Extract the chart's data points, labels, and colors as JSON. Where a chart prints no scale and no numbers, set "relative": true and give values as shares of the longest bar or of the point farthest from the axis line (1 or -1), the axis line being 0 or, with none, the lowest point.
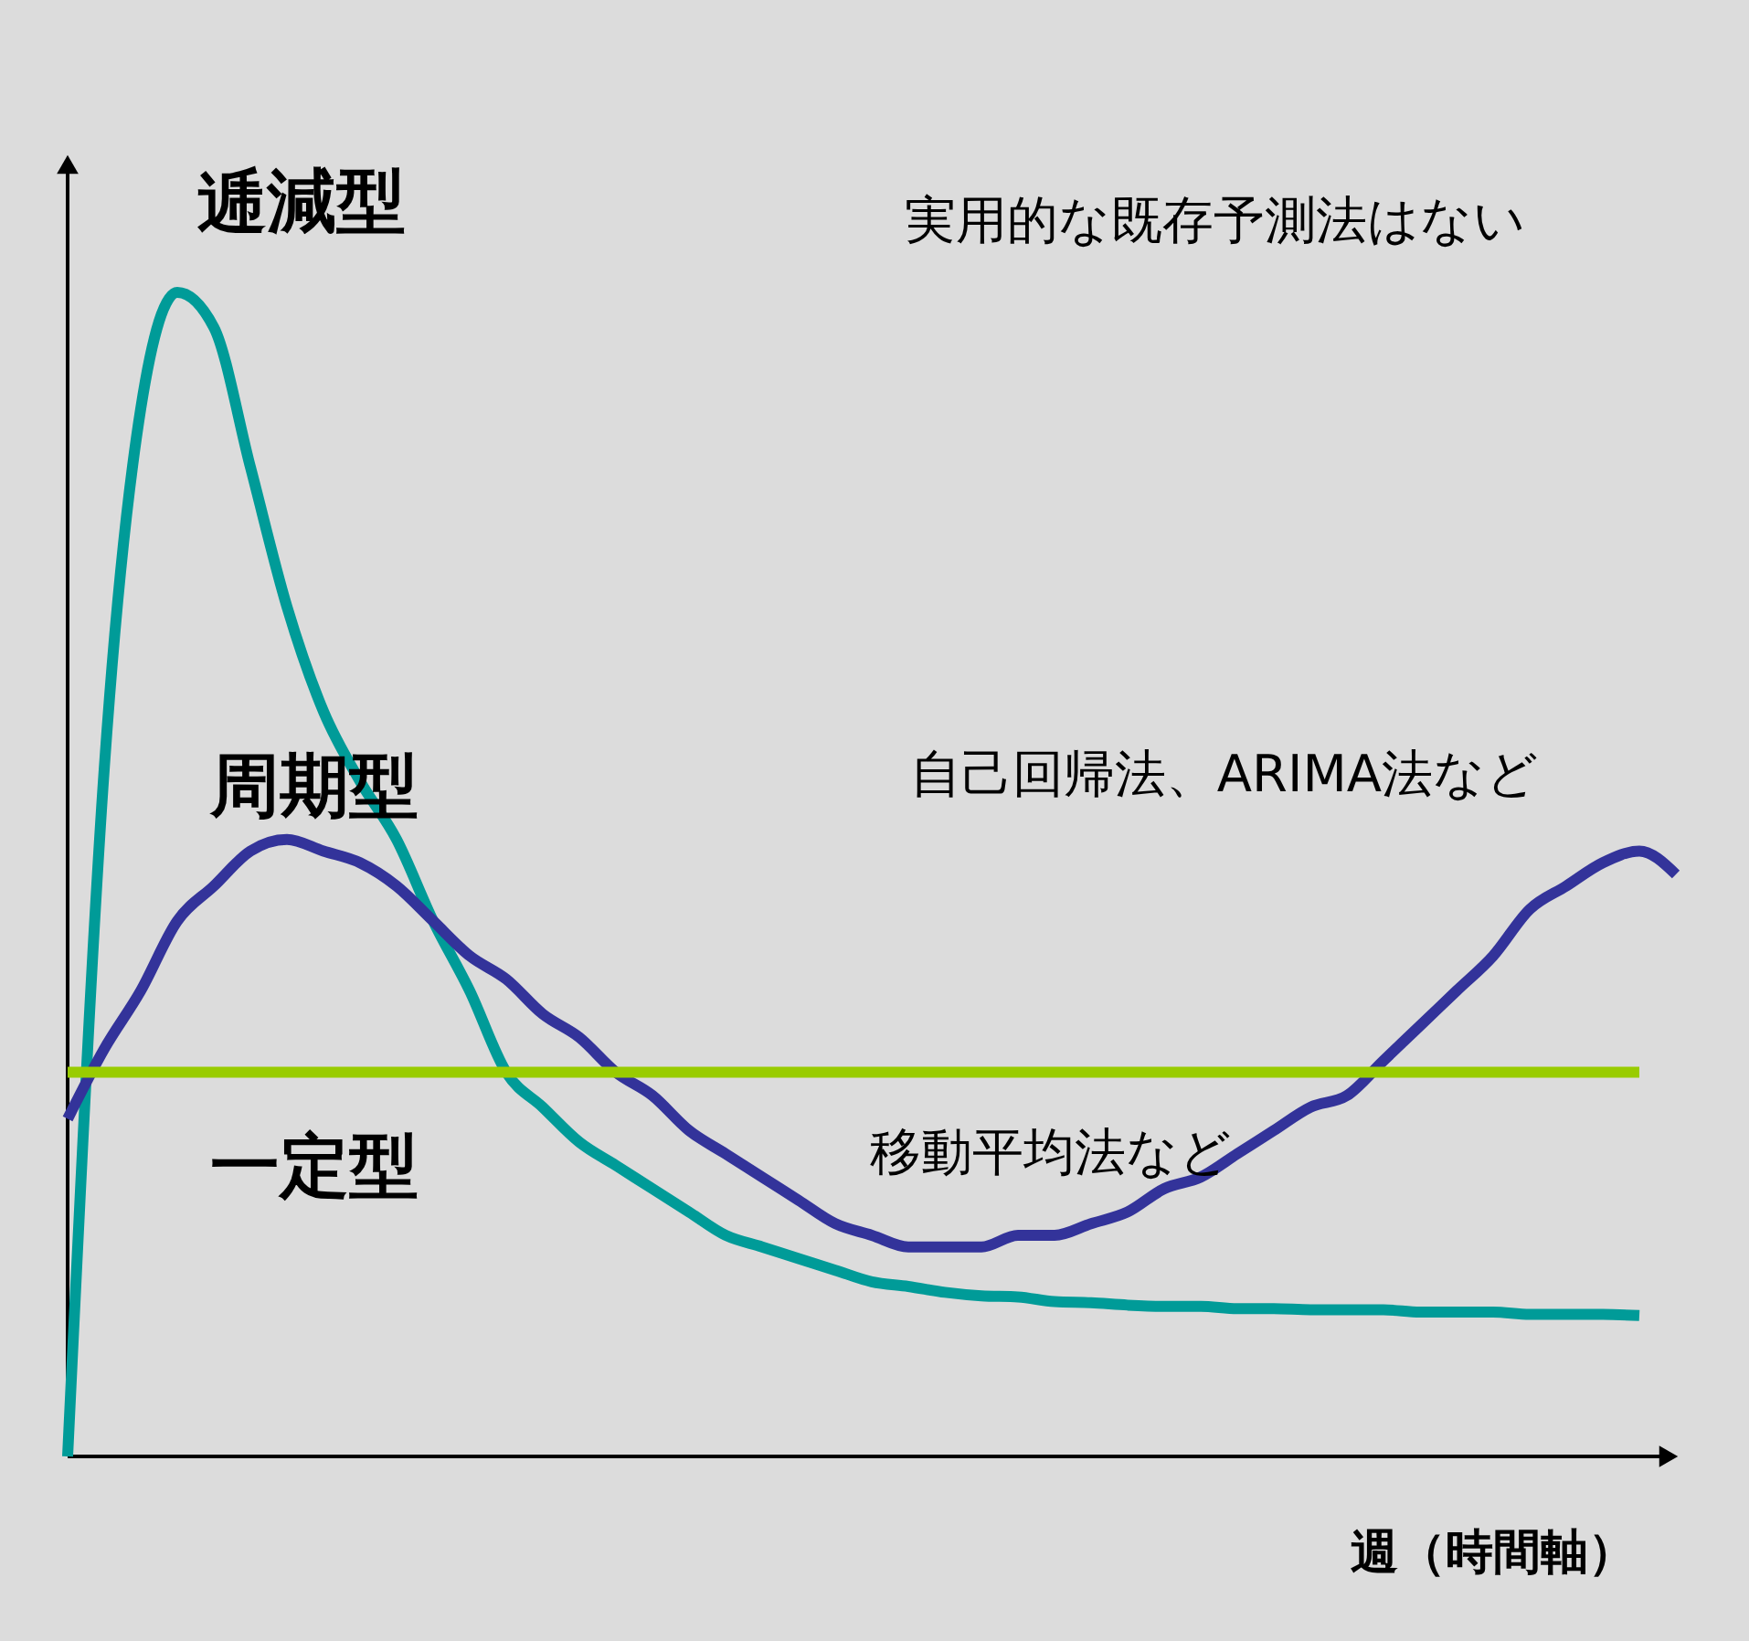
{
  "chart_data": {
    "type": "line",
    "relative": true,
    "line_style": "solid",
    "xlabel": "週（時間軸）",
    "categories": [
      null,
      null,
      null,
      null,
      null,
      null,
      null,
      null,
      null,
      null,
      null,
      null,
      null,
      null,
      null,
      null,
      null,
      null,
      null,
      null,
      null,
      null,
      null,
      null,
      null,
      null,
      null,
      null,
      null,
      null,
      null,
      null,
      null,
      null,
      null,
      null,
      null,
      null,
      null,
      null,
      null,
      null,
      null,
      null,
      null
    ],
    "series": [
      {
        "name": "逓減型",
        "color": "#009b98",
        "values": [
          0,
          0.59,
          0.9,
          1,
          0.97,
          0.85,
          0.73,
          0.64,
          0.58,
          0.53,
          0.46,
          0.4,
          0.33,
          0.3,
          0.27,
          0.25,
          0.23,
          0.21,
          0.19,
          0.18,
          0.17,
          0.16,
          0.15,
          0.146,
          0.141,
          0.138,
          0.137,
          0.133,
          0.132,
          0.13,
          0.129,
          0.129,
          0.127,
          0.127,
          0.126,
          0.126,
          0.126,
          0.124,
          0.124,
          0.124,
          0.122,
          0.122,
          0.122,
          0.121,
          null
        ]
      },
      {
        "name": "周期型",
        "color": "#33339a",
        "values": [
          0.29,
          0.35,
          0.4,
          0.46,
          0.49,
          0.52,
          0.53,
          0.52,
          0.51,
          0.49,
          0.46,
          0.43,
          0.41,
          0.38,
          0.36,
          0.33,
          0.31,
          0.28,
          0.26,
          0.24,
          0.22,
          0.2,
          0.19,
          0.18,
          0.18,
          0.18,
          0.19,
          0.19,
          0.2,
          0.21,
          0.23,
          0.24,
          0.26,
          0.28,
          0.3,
          0.31,
          0.34,
          0.37,
          0.4,
          0.43,
          0.47,
          0.49,
          0.51,
          0.52,
          0.5
        ]
      },
      {
        "name": "一定型",
        "color": "#99cc00",
        "values": [
          0.33,
          0.33,
          0.33,
          0.33,
          0.33,
          0.33,
          0.33,
          0.33,
          0.33,
          0.33,
          0.33,
          0.33,
          0.33,
          0.33,
          0.33,
          0.33,
          0.33,
          0.33,
          0.33,
          0.33,
          0.33,
          0.33,
          0.33,
          0.33,
          0.33,
          0.33,
          0.33,
          0.33,
          0.33,
          0.33,
          0.33,
          0.33,
          0.33,
          0.33,
          0.33,
          0.33,
          0.33,
          0.33,
          0.33,
          0.33,
          0.33,
          0.33,
          0.33,
          0.33,
          null
        ]
      }
    ],
    "annotations": [
      "実用的な既存予測法はない",
      "自己回帰法、ARIMA法など",
      "移動平均法など"
    ]
  }
}
